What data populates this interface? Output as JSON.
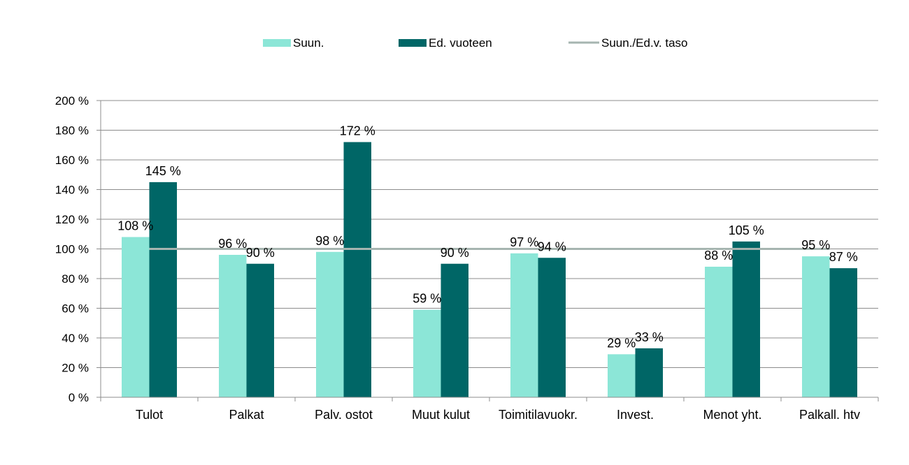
{
  "chart_data": {
    "type": "bar",
    "categories": [
      "Tulot",
      "Palkat",
      "Palv. ostot",
      "Muut kulut",
      "Toimitilavuokr.",
      "Invest.",
      "Menot yht.",
      "Palkall. htv"
    ],
    "series": [
      {
        "name": "Suun.",
        "color": "#8ce6d7",
        "values": [
          108,
          96,
          98,
          59,
          97,
          29,
          88,
          95
        ],
        "labels": [
          "108 %",
          "96 %",
          "98 %",
          "59 %",
          "97 %",
          "29 %",
          "88 %",
          "95 %"
        ]
      },
      {
        "name": "Ed. vuoteen",
        "color": "#006666",
        "values": [
          145,
          90,
          172,
          90,
          94,
          33,
          105,
          87
        ],
        "labels": [
          "145 %",
          "90 %",
          "172 %",
          "90 %",
          "94 %",
          "33 %",
          "105 %",
          "87 %"
        ]
      }
    ],
    "reference_line": {
      "name": "Suun./Ed.v. taso",
      "value": 100,
      "color": "#a6b5b0"
    },
    "ylim": [
      0,
      200
    ],
    "yticks": [
      0,
      20,
      40,
      60,
      80,
      100,
      120,
      140,
      160,
      180,
      200
    ],
    "ytick_labels": [
      "0 %",
      "20 %",
      "40 %",
      "60 %",
      "80 %",
      "100 %",
      "120 %",
      "140 %",
      "160 %",
      "180 %",
      "200 %"
    ],
    "grid": true,
    "legend_position": "top"
  }
}
